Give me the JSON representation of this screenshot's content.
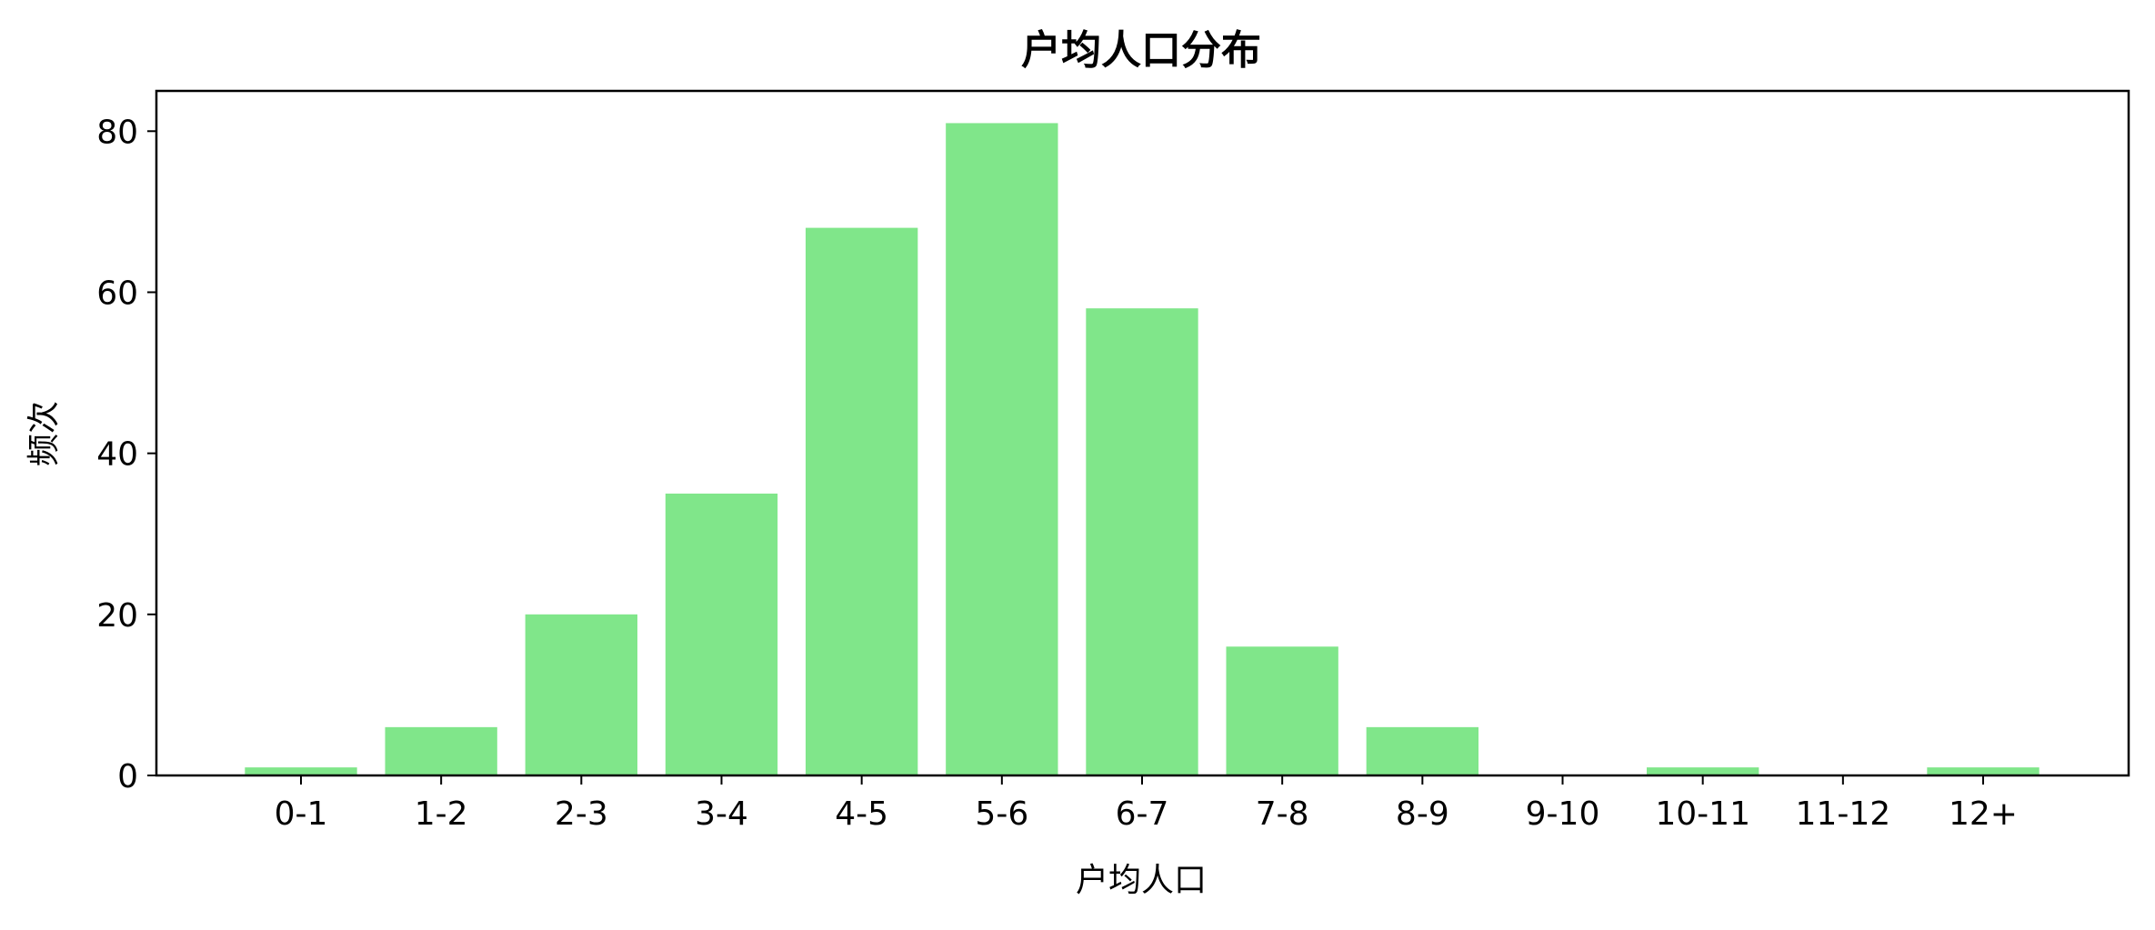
{
  "chart_data": {
    "type": "bar",
    "title": "户均人口分布",
    "xlabel": "户均人口",
    "ylabel": "频次",
    "categories": [
      "0-1",
      "1-2",
      "2-3",
      "3-4",
      "4-5",
      "5-6",
      "6-7",
      "7-8",
      "8-9",
      "9-10",
      "10-11",
      "11-12",
      "12+"
    ],
    "values": [
      1,
      6,
      20,
      35,
      68,
      81,
      58,
      16,
      6,
      0,
      1,
      0,
      1
    ],
    "ylim": [
      0,
      85
    ],
    "yticks": [
      0,
      20,
      40,
      60,
      80
    ],
    "bar_color": "#80e68a",
    "grid": false,
    "legend": null
  }
}
